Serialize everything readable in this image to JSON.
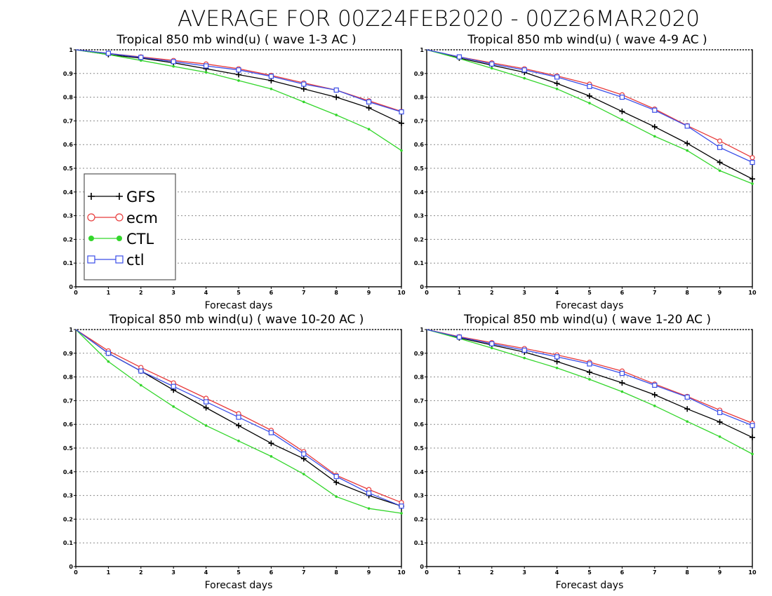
{
  "figure": {
    "title": "AVERAGE FOR 00Z24FEB2020 - 00Z26MAR2020"
  },
  "legend": {
    "entries": [
      "GFS",
      "ecm",
      "CTL",
      "ctl"
    ]
  },
  "series_styles": {
    "GFS": {
      "color": "#000000",
      "marker": "plus"
    },
    "ecm": {
      "color": "#e83a3a",
      "marker": "circle"
    },
    "CTL": {
      "color": "#33d62b",
      "marker": "dot"
    },
    "ctl": {
      "color": "#3a4ee8",
      "marker": "square"
    }
  },
  "chart_data": [
    {
      "type": "line",
      "title": "Tropical 850 mb wind(u) ( wave 1-3 AC )",
      "xlabel": "Forecast days",
      "ylabel": "",
      "x": [
        0,
        1,
        2,
        3,
        4,
        5,
        6,
        7,
        8,
        9,
        10
      ],
      "xticks": [
        "0",
        "1",
        "2",
        "3",
        "4",
        "5",
        "6",
        "7",
        "8",
        "9",
        "10"
      ],
      "yticks": [
        "0",
        "0.1",
        "0.2",
        "0.3",
        "0.4",
        "0.5",
        "0.6",
        "0.7",
        "0.8",
        "0.9",
        "1"
      ],
      "xlim": [
        0,
        10
      ],
      "ylim": [
        0,
        1
      ],
      "grid": "horizontal dotted",
      "legend": "lower-left",
      "series": [
        {
          "name": "GFS",
          "values": [
            1.0,
            0.98,
            0.965,
            0.945,
            0.92,
            0.895,
            0.87,
            0.835,
            0.8,
            0.755,
            0.69
          ]
        },
        {
          "name": "ecm",
          "values": [
            1.0,
            0.985,
            0.97,
            0.955,
            0.94,
            0.92,
            0.892,
            0.86,
            0.83,
            0.785,
            0.74
          ]
        },
        {
          "name": "CTL",
          "values": [
            1.0,
            0.98,
            0.955,
            0.93,
            0.905,
            0.87,
            0.835,
            0.78,
            0.725,
            0.665,
            0.575
          ]
        },
        {
          "name": "ctl",
          "values": [
            1.0,
            0.985,
            0.968,
            0.95,
            0.932,
            0.915,
            0.888,
            0.855,
            0.83,
            0.78,
            0.738
          ]
        }
      ]
    },
    {
      "type": "line",
      "title": "Tropical 850 mb wind(u) ( wave 4-9 AC )",
      "xlabel": "Forecast days",
      "ylabel": "",
      "x": [
        0,
        1,
        2,
        3,
        4,
        5,
        6,
        7,
        8,
        9,
        10
      ],
      "xticks": [
        "0",
        "1",
        "2",
        "3",
        "4",
        "5",
        "6",
        "7",
        "8",
        "9",
        "10"
      ],
      "yticks": [
        "0",
        "0.1",
        "0.2",
        "0.3",
        "0.4",
        "0.5",
        "0.6",
        "0.7",
        "0.8",
        "0.9",
        "1"
      ],
      "xlim": [
        0,
        10
      ],
      "ylim": [
        0,
        1
      ],
      "grid": "horizontal dotted",
      "series": [
        {
          "name": "GFS",
          "values": [
            1.0,
            0.965,
            0.935,
            0.905,
            0.858,
            0.805,
            0.74,
            0.675,
            0.605,
            0.525,
            0.455
          ]
        },
        {
          "name": "ecm",
          "values": [
            1.0,
            0.97,
            0.945,
            0.92,
            0.89,
            0.855,
            0.81,
            0.75,
            0.68,
            0.615,
            0.545
          ]
        },
        {
          "name": "CTL",
          "values": [
            1.0,
            0.963,
            0.922,
            0.88,
            0.835,
            0.775,
            0.705,
            0.635,
            0.575,
            0.49,
            0.435
          ]
        },
        {
          "name": "ctl",
          "values": [
            1.0,
            0.97,
            0.94,
            0.915,
            0.885,
            0.845,
            0.8,
            0.745,
            0.678,
            0.588,
            0.525
          ]
        }
      ]
    },
    {
      "type": "line",
      "title": "Tropical 850 mb wind(u) ( wave 10-20 AC )",
      "xlabel": "Forecast days",
      "ylabel": "",
      "x": [
        0,
        1,
        2,
        3,
        4,
        5,
        6,
        7,
        8,
        9,
        10
      ],
      "xticks": [
        "0",
        "1",
        "2",
        "3",
        "4",
        "5",
        "6",
        "7",
        "8",
        "9",
        "10"
      ],
      "yticks": [
        "0",
        "0.1",
        "0.2",
        "0.3",
        "0.4",
        "0.5",
        "0.6",
        "0.7",
        "0.8",
        "0.9",
        "1"
      ],
      "xlim": [
        0,
        10
      ],
      "ylim": [
        0,
        1
      ],
      "grid": "horizontal dotted",
      "series": [
        {
          "name": "GFS",
          "values": [
            1.0,
            0.9,
            0.825,
            0.745,
            0.67,
            0.595,
            0.52,
            0.455,
            0.355,
            0.3,
            0.255
          ]
        },
        {
          "name": "ecm",
          "values": [
            1.0,
            0.91,
            0.84,
            0.775,
            0.71,
            0.645,
            0.575,
            0.485,
            0.385,
            0.325,
            0.27
          ]
        },
        {
          "name": "CTL",
          "values": [
            1.0,
            0.865,
            0.765,
            0.675,
            0.595,
            0.53,
            0.465,
            0.39,
            0.295,
            0.245,
            0.225
          ]
        },
        {
          "name": "ctl",
          "values": [
            1.0,
            0.9,
            0.825,
            0.76,
            0.695,
            0.63,
            0.565,
            0.475,
            0.38,
            0.31,
            0.255
          ]
        }
      ]
    },
    {
      "type": "line",
      "title": "Tropical 850 mb wind(u) ( wave 1-20 AC )",
      "xlabel": "Forecast days",
      "ylabel": "",
      "x": [
        0,
        1,
        2,
        3,
        4,
        5,
        6,
        7,
        8,
        9,
        10
      ],
      "xticks": [
        "0",
        "1",
        "2",
        "3",
        "4",
        "5",
        "6",
        "7",
        "8",
        "9",
        "10"
      ],
      "yticks": [
        "0",
        "0.1",
        "0.2",
        "0.3",
        "0.4",
        "0.5",
        "0.6",
        "0.7",
        "0.8",
        "0.9",
        "1"
      ],
      "xlim": [
        0,
        10
      ],
      "ylim": [
        0,
        1
      ],
      "grid": "horizontal dotted",
      "series": [
        {
          "name": "GFS",
          "values": [
            1.0,
            0.965,
            0.935,
            0.905,
            0.865,
            0.82,
            0.775,
            0.725,
            0.665,
            0.61,
            0.545
          ]
        },
        {
          "name": "ecm",
          "values": [
            1.0,
            0.97,
            0.945,
            0.92,
            0.893,
            0.862,
            0.825,
            0.77,
            0.718,
            0.66,
            0.605
          ]
        },
        {
          "name": "CTL",
          "values": [
            1.0,
            0.962,
            0.922,
            0.88,
            0.838,
            0.79,
            0.738,
            0.678,
            0.612,
            0.548,
            0.475
          ]
        },
        {
          "name": "ctl",
          "values": [
            1.0,
            0.968,
            0.94,
            0.913,
            0.885,
            0.855,
            0.815,
            0.765,
            0.715,
            0.65,
            0.595
          ]
        }
      ]
    }
  ]
}
